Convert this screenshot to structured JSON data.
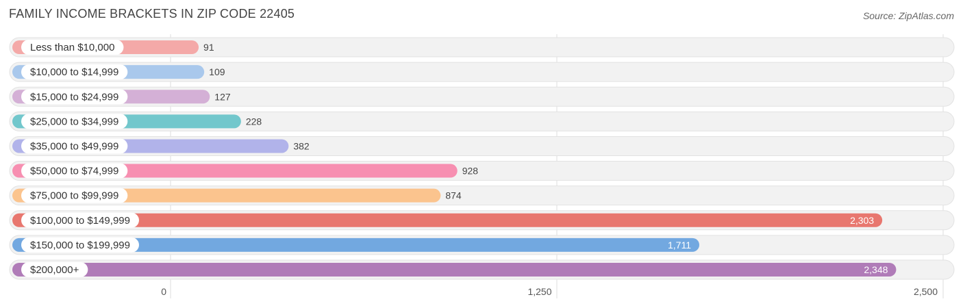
{
  "title": "FAMILY INCOME BRACKETS IN ZIP CODE 22405",
  "source": "Source: ZipAtlas.com",
  "chart_data": {
    "type": "bar",
    "orientation": "horizontal",
    "title": "FAMILY INCOME BRACKETS IN ZIP CODE 22405",
    "categories": [
      "Less than $10,000",
      "$10,000 to $14,999",
      "$15,000 to $24,999",
      "$25,000 to $34,999",
      "$35,000 to $49,999",
      "$50,000 to $74,999",
      "$75,000 to $99,999",
      "$100,000 to $149,999",
      "$150,000 to $199,999",
      "$200,000+"
    ],
    "values": [
      91,
      109,
      127,
      228,
      382,
      928,
      874,
      2303,
      1711,
      2348
    ],
    "value_labels": [
      "91",
      "109",
      "127",
      "228",
      "382",
      "928",
      "874",
      "2,303",
      "1,711",
      "2,348"
    ],
    "colors": [
      "#f4a9a8",
      "#a9c8ec",
      "#d4b0d6",
      "#72c7cc",
      "#b1b3ea",
      "#f78fb1",
      "#fbc48e",
      "#e8776f",
      "#72a8e0",
      "#b07cb8"
    ],
    "xlim": [
      0,
      2500
    ],
    "xticks": [
      0,
      1250,
      2500
    ],
    "xtick_labels": [
      "0",
      "1,250",
      "2,500"
    ],
    "grid": true
  }
}
